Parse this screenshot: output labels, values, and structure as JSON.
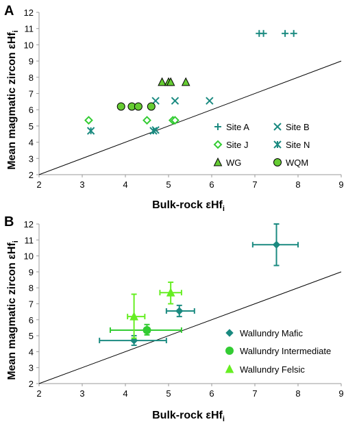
{
  "colors": {
    "teal": "#1a8a80",
    "light_green": "#33cc33",
    "lime": "#66ee22",
    "marker_green": "#66cc33",
    "axis": "#999999"
  },
  "chart_data": [
    {
      "panel_label": "A",
      "type": "scatter",
      "xlabel": "Bulk-rock εHf",
      "xlabel_sub": "i",
      "ylabel": "Mean magmatic zircon εHf",
      "ylabel_sub": "i",
      "xlim": [
        2,
        9
      ],
      "ylim": [
        2,
        12
      ],
      "xticks": [
        2,
        3,
        4,
        5,
        6,
        7,
        8,
        9
      ],
      "yticks": [
        2,
        3,
        4,
        5,
        6,
        7,
        8,
        9,
        10,
        11,
        12
      ],
      "grid": false,
      "legend_position": "bottom-right",
      "reference_line": {
        "from": [
          2,
          2
        ],
        "to": [
          9,
          9
        ]
      },
      "series": [
        {
          "name": "Site A",
          "marker": "plus",
          "color": "#1a8a80",
          "points": [
            [
              7.1,
              10.7
            ],
            [
              7.2,
              10.7
            ],
            [
              7.7,
              10.7
            ],
            [
              7.9,
              10.7
            ]
          ]
        },
        {
          "name": "Site B",
          "marker": "x",
          "color": "#1a8a80",
          "points": [
            [
              4.7,
              6.55
            ],
            [
              5.15,
              6.55
            ],
            [
              5.95,
              6.55
            ],
            [
              4.7,
              4.75
            ]
          ]
        },
        {
          "name": "Site J",
          "marker": "diamond-open",
          "color": "#33cc33",
          "points": [
            [
              3.15,
              5.35
            ],
            [
              4.5,
              5.35
            ],
            [
              5.1,
              5.35
            ],
            [
              5.15,
              5.35
            ]
          ]
        },
        {
          "name": "Site N",
          "marker": "asterisk",
          "color": "#1a8a80",
          "points": [
            [
              3.2,
              4.7
            ],
            [
              4.65,
              4.7
            ]
          ]
        },
        {
          "name": "WG",
          "marker": "triangle",
          "color": "#66cc33",
          "points": [
            [
              4.85,
              7.7
            ],
            [
              5.0,
              7.7
            ],
            [
              5.05,
              7.7
            ],
            [
              5.4,
              7.7
            ]
          ]
        },
        {
          "name": "WQM",
          "marker": "circle",
          "color": "#66cc33",
          "points": [
            [
              3.9,
              6.2
            ],
            [
              4.15,
              6.2
            ],
            [
              4.3,
              6.2
            ],
            [
              4.6,
              6.2
            ]
          ]
        }
      ]
    },
    {
      "panel_label": "B",
      "type": "scatter",
      "xlabel": "Bulk-rock εHf",
      "xlabel_sub": "i",
      "ylabel": "Mean magmatic zircon εHf",
      "ylabel_sub": "i",
      "xlim": [
        2,
        9
      ],
      "ylim": [
        2,
        12
      ],
      "xticks": [
        2,
        3,
        4,
        5,
        6,
        7,
        8,
        9
      ],
      "yticks": [
        2,
        3,
        4,
        5,
        6,
        7,
        8,
        9,
        10,
        11,
        12
      ],
      "grid": false,
      "legend_position": "bottom-right",
      "reference_line": {
        "from": [
          2,
          2
        ],
        "to": [
          9,
          9
        ]
      },
      "series": [
        {
          "name": "Wallundry Mafic",
          "marker": "diamond",
          "color": "#1a8a80",
          "points": [
            {
              "x": 7.5,
              "y": 10.7,
              "xerr": [
                6.95,
                8.0
              ],
              "yerr": [
                9.4,
                12.0
              ]
            },
            {
              "x": 5.25,
              "y": 6.55,
              "xerr": [
                4.95,
                5.6
              ],
              "yerr": [
                6.2,
                6.9
              ]
            },
            {
              "x": 4.2,
              "y": 4.7,
              "xerr": [
                3.4,
                4.95
              ],
              "yerr": [
                4.4,
                5.0
              ]
            }
          ]
        },
        {
          "name": "Wallundry Intermediate",
          "marker": "circle",
          "color": "#33cc33",
          "points": [
            {
              "x": 4.5,
              "y": 5.35,
              "xerr": [
                3.65,
                5.3
              ],
              "yerr": [
                5.05,
                5.7
              ]
            }
          ]
        },
        {
          "name": "Wallundry Felsic",
          "marker": "triangle",
          "color": "#66ee22",
          "points": [
            {
              "x": 5.05,
              "y": 7.7,
              "xerr": [
                4.8,
                5.3
              ],
              "yerr": [
                7.0,
                8.35
              ]
            },
            {
              "x": 4.2,
              "y": 6.2,
              "xerr": [
                4.05,
                4.45
              ],
              "yerr": [
                4.85,
                7.6
              ]
            }
          ]
        }
      ]
    }
  ]
}
